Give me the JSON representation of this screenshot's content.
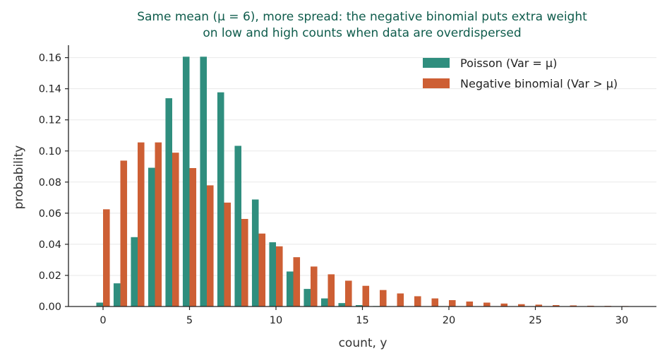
{
  "chart_data": {
    "type": "bar",
    "title_lines": [
      "Same mean (μ = 6), more spread: the negative binomial puts extra weight",
      "on low and high counts when data are overdispersed"
    ],
    "xlabel": "count, y",
    "ylabel": "probability",
    "xlim": [
      -2,
      32
    ],
    "ylim": [
      0,
      0.168
    ],
    "xticks": [
      0,
      5,
      10,
      15,
      20,
      25,
      30
    ],
    "yticks": [
      0.0,
      0.02,
      0.04,
      0.06,
      0.08,
      0.1,
      0.12,
      0.14,
      0.16
    ],
    "ytick_labels": [
      "0.00",
      "0.02",
      "0.04",
      "0.06",
      "0.08",
      "0.10",
      "0.12",
      "0.14",
      "0.16"
    ],
    "grid": "horizontal",
    "legend_position": "top-right",
    "x": [
      0,
      1,
      2,
      3,
      4,
      5,
      6,
      7,
      8,
      9,
      10,
      11,
      12,
      13,
      14,
      15,
      16,
      17,
      18,
      19,
      20,
      21,
      22,
      23,
      24,
      25,
      26,
      27,
      28,
      29,
      30
    ],
    "series": [
      {
        "name": "Poisson (Var = μ)",
        "color": "#2f8e7e",
        "values": [
          0.0025,
          0.0149,
          0.0446,
          0.0892,
          0.1339,
          0.1606,
          0.1606,
          0.1377,
          0.1033,
          0.0688,
          0.0413,
          0.0225,
          0.0113,
          0.0052,
          0.0022,
          0.0009,
          0.0003,
          0.0001,
          0.0,
          0.0,
          0.0,
          0.0,
          0.0,
          0.0,
          0.0,
          0.0,
          0.0,
          0.0,
          0.0,
          0.0,
          0.0
        ]
      },
      {
        "name": "Negative binomial (Var > μ)",
        "color": "#cd5f34",
        "values": [
          0.0625,
          0.0938,
          0.1055,
          0.1055,
          0.0989,
          0.089,
          0.0779,
          0.0668,
          0.0563,
          0.0469,
          0.0387,
          0.0317,
          0.0257,
          0.0207,
          0.0166,
          0.0133,
          0.0106,
          0.0084,
          0.0066,
          0.0052,
          0.0041,
          0.0032,
          0.0025,
          0.0019,
          0.0015,
          0.0012,
          0.0009,
          0.0007,
          0.0005,
          0.0004,
          0.0003
        ]
      }
    ]
  }
}
